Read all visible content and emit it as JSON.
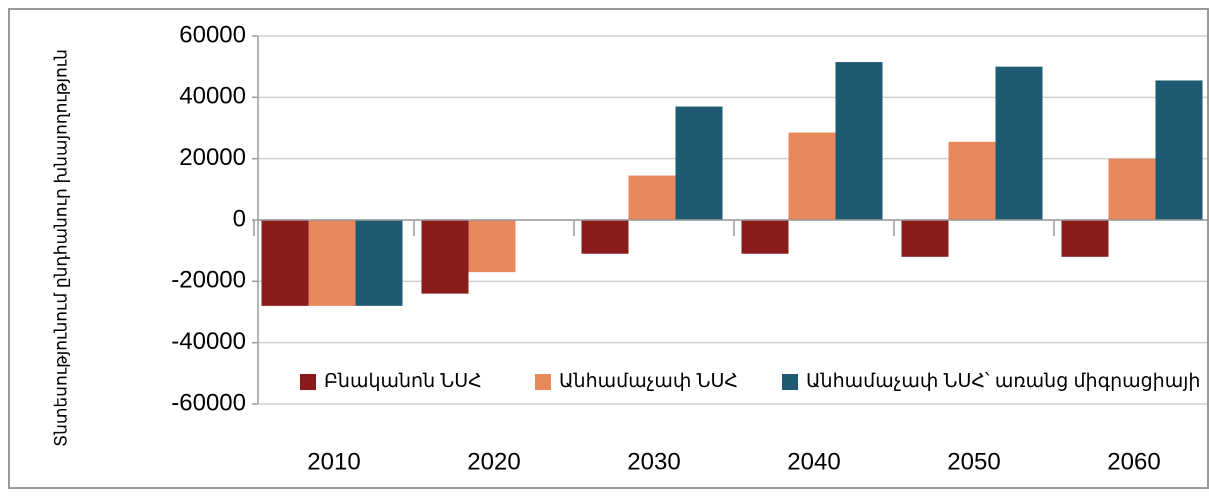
{
  "chart_data": {
    "type": "bar",
    "y_label": "Տնտեսությունում ընդհանուր խնայողություն",
    "categories": [
      "2010",
      "2020",
      "2030",
      "2040",
      "2050",
      "2060"
    ],
    "series": [
      {
        "name": "Բնականոն ՆՍՀ",
        "color": "#8b1a1a",
        "values": [
          -28000,
          -24000,
          -11000,
          -11000,
          -12000,
          -12000
        ]
      },
      {
        "name": "Անհամաչափ ՆՍՀ",
        "color": "#e8875a",
        "values": [
          -28000,
          -17000,
          14500,
          28500,
          25500,
          20000
        ]
      },
      {
        "name": "Անհամաչափ ՆՍՀ՝ առանց միգրացիայի",
        "color": "#1f5a73",
        "values": [
          -28000,
          null,
          37000,
          51500,
          50000,
          45500
        ]
      }
    ],
    "ylim": [
      -60000,
      60000
    ],
    "yticks": [
      -60000,
      -40000,
      -20000,
      0,
      20000,
      40000,
      60000
    ],
    "grid": true,
    "legend": "bottom"
  }
}
